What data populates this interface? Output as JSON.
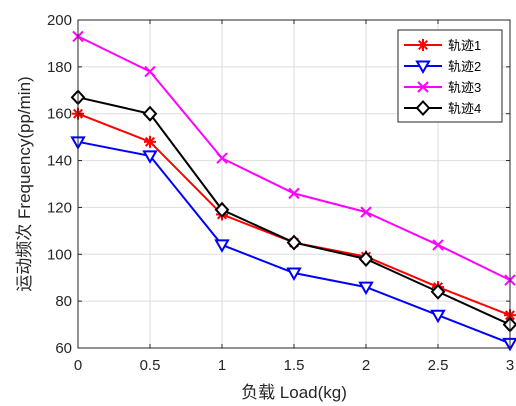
{
  "chart_data": {
    "type": "line",
    "xlabel": "负载 Load(kg)",
    "ylabel": "运动频次 Frequency(pp/min)",
    "x": [
      0,
      0.5,
      1,
      1.5,
      2,
      2.5,
      3
    ],
    "x_tick_labels": [
      "0",
      "0.5",
      "1",
      "1.5",
      "2",
      "2.5",
      "3"
    ],
    "xlim": [
      0,
      3
    ],
    "ylim": [
      60,
      200
    ],
    "y_ticks": [
      60,
      80,
      100,
      120,
      140,
      160,
      180,
      200
    ],
    "y_tick_labels": [
      "60",
      "80",
      "100",
      "120",
      "140",
      "160",
      "180",
      "200"
    ],
    "grid": true,
    "legend_position": "top-right",
    "series": [
      {
        "name": "轨迹1",
        "color": "#ff0000",
        "marker": "asterisk",
        "values": [
          160,
          148,
          117,
          105,
          99,
          86,
          74
        ]
      },
      {
        "name": "轨迹2",
        "color": "#0000ff",
        "marker": "triangle-down",
        "values": [
          148,
          142,
          104,
          92,
          86,
          74,
          62
        ]
      },
      {
        "name": "轨迹3",
        "color": "#ff00ff",
        "marker": "x",
        "values": [
          193,
          178,
          141,
          126,
          118,
          104,
          89
        ]
      },
      {
        "name": "轨迹4",
        "color": "#000000",
        "marker": "diamond",
        "values": [
          167,
          160,
          119,
          105,
          98,
          84,
          70
        ]
      }
    ]
  }
}
